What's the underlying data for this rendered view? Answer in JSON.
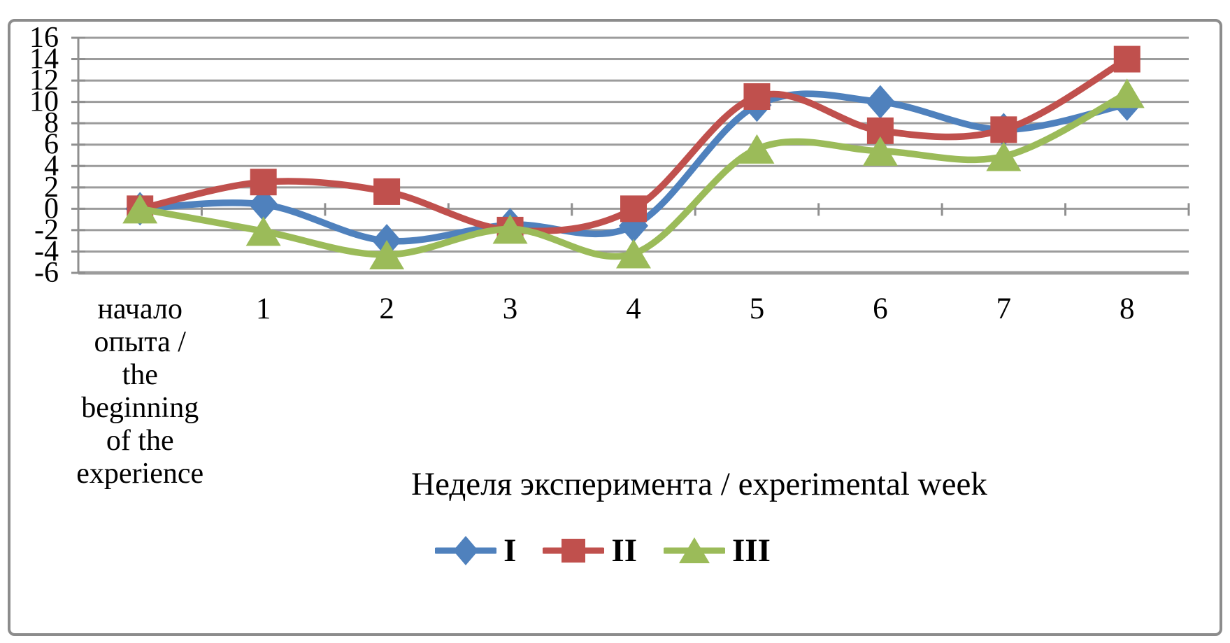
{
  "chart_data": {
    "type": "line",
    "smoothed": true,
    "title": "",
    "xlabel": "Неделя эксперимента / experimental week",
    "ylabel": "",
    "ylim": [
      -6,
      16
    ],
    "yticks": [
      16,
      14,
      12,
      10,
      8,
      6,
      4,
      2,
      0,
      -2,
      -4,
      -6
    ],
    "grid": "horizontal",
    "legend_position": "bottom",
    "categories": [
      "начало опыта / the beginning of the experience",
      "1",
      "2",
      "3",
      "4",
      "5",
      "6",
      "7",
      "8"
    ],
    "first_category_lines": [
      "начало",
      "опыта /",
      "the",
      "beginning",
      "of the",
      "experience"
    ],
    "series": [
      {
        "name": "I",
        "marker": "diamond",
        "color": "#4F81BD",
        "values": [
          0,
          0.4,
          -3.0,
          -1.5,
          -1.6,
          9.7,
          10.0,
          7.4,
          9.8
        ]
      },
      {
        "name": "II",
        "marker": "square",
        "color": "#C0504D",
        "values": [
          0,
          2.5,
          1.6,
          -2.0,
          0.0,
          10.5,
          7.3,
          7.4,
          14.0
        ]
      },
      {
        "name": "III",
        "marker": "triangle",
        "color": "#9BBB59",
        "values": [
          0,
          -2.1,
          -4.3,
          -1.9,
          -4.2,
          5.6,
          5.4,
          4.9,
          10.8
        ]
      }
    ]
  },
  "colors": {
    "grid": "#9C9C9C",
    "axis": "#8F8F8F",
    "frame_border": "#8C8C8C",
    "text": "#000000",
    "background": "#FFFFFF"
  }
}
